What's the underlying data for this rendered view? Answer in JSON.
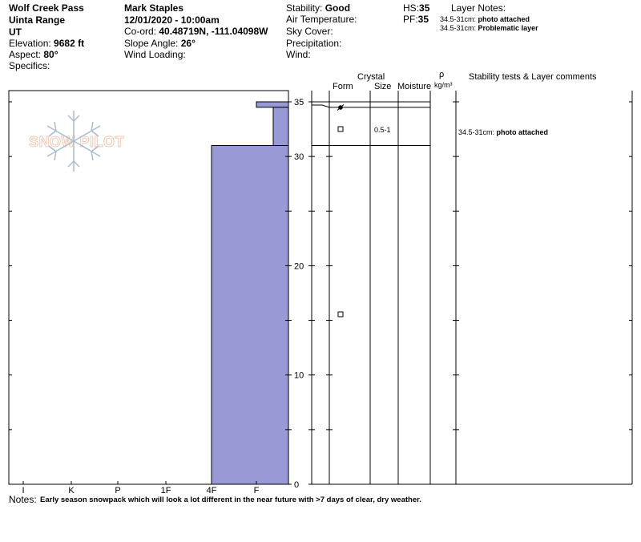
{
  "header": {
    "location": "Wolf Creek Pass",
    "range": "Uinta Range",
    "state": "UT",
    "elevation_label": "Elevation:",
    "elevation_value": "9682 ft",
    "aspect_label": "Aspect:",
    "aspect_value": "80°",
    "specifics_label": "Specifics:",
    "observer": "Mark Staples",
    "datetime": "12/01/2020 - 10:00am",
    "coord_label": "Co-ord:",
    "coord_value": "40.48719N, -111.04098W",
    "slope_label": "Slope Angle:",
    "slope_value": "26°",
    "wind_loading_label": "Wind Loading:",
    "stability_label": "Stability:",
    "stability_value": "Good",
    "air_temp_label": "Air Temperature:",
    "sky_label": "Sky Cover:",
    "precip_label": "Precipitation:",
    "wind_label": "Wind:",
    "hs_label": "HS:",
    "hs_value": "35",
    "pf_label": "PF:",
    "pf_value": "35",
    "layer_notes_title": "Layer Notes:",
    "layer_notes": [
      {
        "range": "34.5-31cm:",
        "note": "photo attached"
      },
      {
        "range": "34.5-31cm:",
        "note": "Problematic layer"
      }
    ]
  },
  "logo_text": "SNOW PILOT",
  "table_headers": {
    "crystal": "Crystal",
    "form": "Form",
    "size": "Size",
    "moisture": "Moisture",
    "rho": "ρ",
    "density_unit": "kg/m³",
    "comments": "Stability tests & Layer comments"
  },
  "layer_rows": [
    {
      "size": "",
      "comment_range": "",
      "comment": ""
    },
    {
      "size": "0.5-1",
      "comment_range": "34.5-31cm:",
      "comment": "photo attached"
    }
  ],
  "notes_label": "Notes:",
  "notes_text": "Early season snowpack which will look a lot different in the near future with >7 days of clear, dry weather.",
  "colors": {
    "hardness_fill": "#9999d6",
    "logo": "#f0c8b4",
    "snowflake": "#a8bcd0"
  },
  "chart_data": {
    "type": "area",
    "title": "",
    "xlabel": "",
    "ylabel": "",
    "ylim": [
      0,
      35
    ],
    "y_ticks": [
      0,
      10,
      20,
      30,
      35
    ],
    "hardness_scale": [
      "I",
      "K",
      "P",
      "1F",
      "4F",
      "F"
    ],
    "series": [
      {
        "values": [
          {
            "top": 35,
            "bottom": 34.5,
            "hardness": "F"
          },
          {
            "top": 34.5,
            "bottom": 31,
            "hardness": "F-"
          },
          {
            "top": 31,
            "bottom": 0,
            "hardness": "4F"
          }
        ]
      }
    ]
  }
}
